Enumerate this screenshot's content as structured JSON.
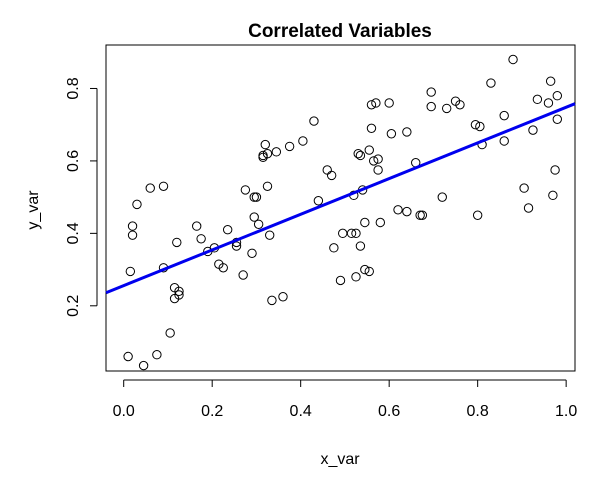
{
  "chart_data": {
    "type": "scatter",
    "title": "Correlated Variables",
    "xlabel": "x_var",
    "ylabel": "y_var",
    "xlim": [
      -0.04,
      1.02
    ],
    "ylim": [
      0.02,
      0.92
    ],
    "x_ticks": [
      "0.0",
      "0.2",
      "0.4",
      "0.6",
      "0.8",
      "1.0"
    ],
    "y_ticks": [
      "0.2",
      "0.4",
      "0.6",
      "0.8"
    ],
    "grid": false,
    "legend": "none",
    "point_color": "#000000",
    "fit_line_color": "#0000ee",
    "fit_line": {
      "x": [
        -0.04,
        1.02
      ],
      "y": [
        0.236,
        0.758
      ]
    },
    "points": [
      {
        "x": 0.01,
        "y": 0.06
      },
      {
        "x": 0.045,
        "y": 0.035
      },
      {
        "x": 0.075,
        "y": 0.065
      },
      {
        "x": 0.105,
        "y": 0.125
      },
      {
        "x": 0.015,
        "y": 0.295
      },
      {
        "x": 0.02,
        "y": 0.395
      },
      {
        "x": 0.02,
        "y": 0.42
      },
      {
        "x": 0.03,
        "y": 0.48
      },
      {
        "x": 0.06,
        "y": 0.525
      },
      {
        "x": 0.09,
        "y": 0.53
      },
      {
        "x": 0.09,
        "y": 0.305
      },
      {
        "x": 0.115,
        "y": 0.22
      },
      {
        "x": 0.115,
        "y": 0.25
      },
      {
        "x": 0.125,
        "y": 0.24
      },
      {
        "x": 0.125,
        "y": 0.23
      },
      {
        "x": 0.12,
        "y": 0.375
      },
      {
        "x": 0.165,
        "y": 0.42
      },
      {
        "x": 0.175,
        "y": 0.385
      },
      {
        "x": 0.19,
        "y": 0.35
      },
      {
        "x": 0.205,
        "y": 0.36
      },
      {
        "x": 0.215,
        "y": 0.315
      },
      {
        "x": 0.225,
        "y": 0.305
      },
      {
        "x": 0.235,
        "y": 0.41
      },
      {
        "x": 0.255,
        "y": 0.365
      },
      {
        "x": 0.255,
        "y": 0.375
      },
      {
        "x": 0.27,
        "y": 0.285
      },
      {
        "x": 0.275,
        "y": 0.52
      },
      {
        "x": 0.29,
        "y": 0.345
      },
      {
        "x": 0.295,
        "y": 0.445
      },
      {
        "x": 0.295,
        "y": 0.5
      },
      {
        "x": 0.305,
        "y": 0.425
      },
      {
        "x": 0.3,
        "y": 0.5
      },
      {
        "x": 0.315,
        "y": 0.61
      },
      {
        "x": 0.315,
        "y": 0.615
      },
      {
        "x": 0.32,
        "y": 0.645
      },
      {
        "x": 0.325,
        "y": 0.62
      },
      {
        "x": 0.325,
        "y": 0.53
      },
      {
        "x": 0.33,
        "y": 0.395
      },
      {
        "x": 0.335,
        "y": 0.215
      },
      {
        "x": 0.36,
        "y": 0.225
      },
      {
        "x": 0.345,
        "y": 0.625
      },
      {
        "x": 0.375,
        "y": 0.64
      },
      {
        "x": 0.405,
        "y": 0.655
      },
      {
        "x": 0.43,
        "y": 0.71
      },
      {
        "x": 0.44,
        "y": 0.49
      },
      {
        "x": 0.46,
        "y": 0.575
      },
      {
        "x": 0.47,
        "y": 0.56
      },
      {
        "x": 0.475,
        "y": 0.36
      },
      {
        "x": 0.49,
        "y": 0.27
      },
      {
        "x": 0.495,
        "y": 0.4
      },
      {
        "x": 0.515,
        "y": 0.4
      },
      {
        "x": 0.52,
        "y": 0.505
      },
      {
        "x": 0.525,
        "y": 0.28
      },
      {
        "x": 0.525,
        "y": 0.4
      },
      {
        "x": 0.53,
        "y": 0.62
      },
      {
        "x": 0.535,
        "y": 0.615
      },
      {
        "x": 0.535,
        "y": 0.365
      },
      {
        "x": 0.54,
        "y": 0.52
      },
      {
        "x": 0.545,
        "y": 0.43
      },
      {
        "x": 0.545,
        "y": 0.3
      },
      {
        "x": 0.555,
        "y": 0.295
      },
      {
        "x": 0.555,
        "y": 0.63
      },
      {
        "x": 0.56,
        "y": 0.69
      },
      {
        "x": 0.56,
        "y": 0.755
      },
      {
        "x": 0.565,
        "y": 0.6
      },
      {
        "x": 0.57,
        "y": 0.76
      },
      {
        "x": 0.575,
        "y": 0.605
      },
      {
        "x": 0.575,
        "y": 0.575
      },
      {
        "x": 0.58,
        "y": 0.43
      },
      {
        "x": 0.6,
        "y": 0.76
      },
      {
        "x": 0.605,
        "y": 0.675
      },
      {
        "x": 0.62,
        "y": 0.465
      },
      {
        "x": 0.64,
        "y": 0.46
      },
      {
        "x": 0.64,
        "y": 0.68
      },
      {
        "x": 0.66,
        "y": 0.595
      },
      {
        "x": 0.67,
        "y": 0.45
      },
      {
        "x": 0.675,
        "y": 0.45
      },
      {
        "x": 0.695,
        "y": 0.79
      },
      {
        "x": 0.695,
        "y": 0.75
      },
      {
        "x": 0.72,
        "y": 0.5
      },
      {
        "x": 0.73,
        "y": 0.745
      },
      {
        "x": 0.75,
        "y": 0.765
      },
      {
        "x": 0.76,
        "y": 0.755
      },
      {
        "x": 0.795,
        "y": 0.7
      },
      {
        "x": 0.8,
        "y": 0.45
      },
      {
        "x": 0.805,
        "y": 0.695
      },
      {
        "x": 0.81,
        "y": 0.645
      },
      {
        "x": 0.83,
        "y": 0.815
      },
      {
        "x": 0.86,
        "y": 0.655
      },
      {
        "x": 0.86,
        "y": 0.725
      },
      {
        "x": 0.88,
        "y": 0.88
      },
      {
        "x": 0.905,
        "y": 0.525
      },
      {
        "x": 0.915,
        "y": 0.47
      },
      {
        "x": 0.925,
        "y": 0.685
      },
      {
        "x": 0.935,
        "y": 0.77
      },
      {
        "x": 0.96,
        "y": 0.76
      },
      {
        "x": 0.965,
        "y": 0.82
      },
      {
        "x": 0.97,
        "y": 0.505
      },
      {
        "x": 0.975,
        "y": 0.575
      },
      {
        "x": 0.98,
        "y": 0.715
      },
      {
        "x": 0.98,
        "y": 0.78
      }
    ]
  }
}
